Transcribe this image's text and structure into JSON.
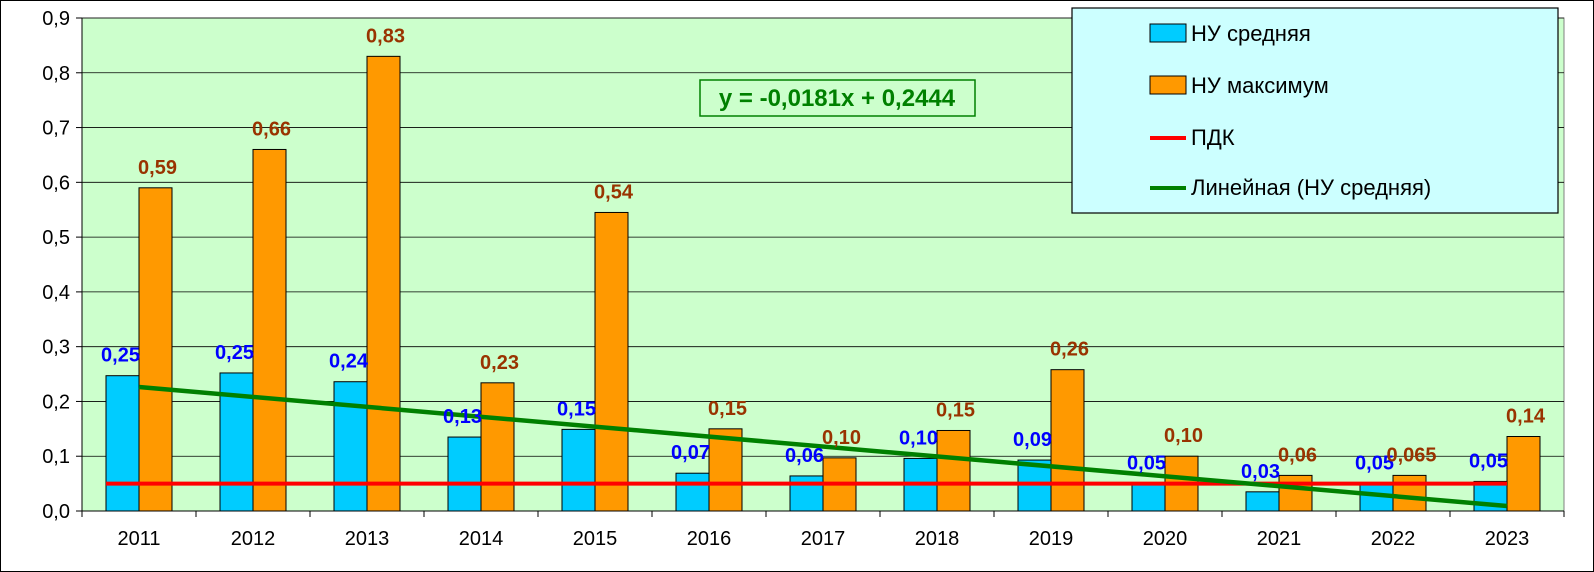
{
  "colors": {
    "plot_bg": "#ccffcc",
    "avg_bar": "#00ccff",
    "max_bar": "#ff9900",
    "limit_line": "#ff0000",
    "trend_line": "#008000",
    "avg_label": "#0000ff",
    "max_label": "#993300",
    "legend_bg": "#ccffff",
    "gridline": "#000000"
  },
  "chart_data": {
    "type": "bar",
    "categories": [
      "2011",
      "2012",
      "2013",
      "2014",
      "2015",
      "2016",
      "2017",
      "2018",
      "2019",
      "2020",
      "2021",
      "2022",
      "2023"
    ],
    "series": [
      {
        "name": "НУ средняя",
        "values": [
          0.247,
          0.252,
          0.236,
          0.135,
          0.149,
          0.069,
          0.064,
          0.096,
          0.093,
          0.05,
          0.035,
          0.05,
          0.054
        ],
        "labels": [
          "0,25",
          "0,25",
          "0,24",
          "0,13",
          "0,15",
          "0,07",
          "0,06",
          "0,10",
          "0,09",
          "0,05",
          "0,03",
          "0,05",
          "0,05"
        ]
      },
      {
        "name": "НУ максимум",
        "values": [
          0.59,
          0.66,
          0.83,
          0.234,
          0.545,
          0.15,
          0.097,
          0.147,
          0.258,
          0.1,
          0.065,
          0.065,
          0.136
        ],
        "labels": [
          "0,59",
          "0,66",
          "0,83",
          "0,23",
          "0,54",
          "0,15",
          "0,10",
          "0,15",
          "0,26",
          "0,10",
          "0,06",
          "0,065",
          "0,14"
        ]
      }
    ],
    "limit_line": {
      "name": "ПДК",
      "value": 0.05
    },
    "trend_line": {
      "name": "Линейная (НУ средняя)",
      "slope": -0.0181,
      "intercept": 0.2444,
      "equation": "y = -0,0181x + 0,2444"
    },
    "y_ticks": [
      "0,0",
      "0,1",
      "0,2",
      "0,3",
      "0,4",
      "0,5",
      "0,6",
      "0,7",
      "0,8",
      "0,9"
    ],
    "ylim": [
      0,
      0.9
    ],
    "grid": true,
    "legend_position": "top-right"
  }
}
